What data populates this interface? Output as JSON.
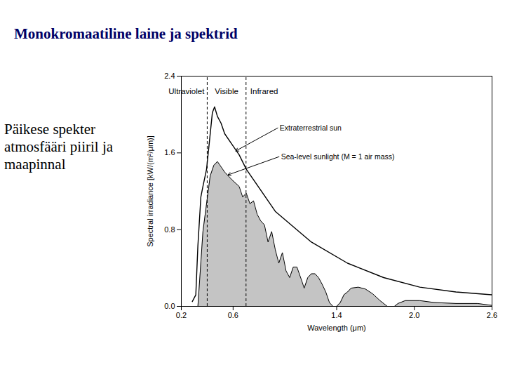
{
  "page_title": "Monokromaatiline laine ja spektrid",
  "side_text": "Päikese spekter atmosfääri piiril ja maapinnal",
  "chart_data": {
    "type": "line",
    "xlabel": "Wavelength (μm)",
    "ylabel": "Spectral irradiance [kW/(m²/μm)]",
    "xlim": [
      0.2,
      2.6
    ],
    "xticks": [
      0.2,
      0.6,
      1.4,
      {
        "value": 2.0,
        "label": "2.0"
      },
      2.6
    ],
    "ylim": [
      0,
      2.4
    ],
    "yticks": [
      {
        "value": 0,
        "label": "0.0"
      },
      0.8,
      1.6,
      2.4
    ],
    "grid": false,
    "regions": [
      {
        "label": "Ultraviolet"
      },
      {
        "label": "Visible"
      },
      {
        "label": "Infrared"
      }
    ],
    "region_bounds": [
      0.4,
      0.7
    ],
    "series": [
      {
        "name": "Sea-level sunlight (M = 1 air mass)",
        "type": "area",
        "color": "#c4c4c4",
        "x": [
          0.328,
          0.367,
          0.423,
          0.451,
          0.479,
          0.535,
          0.591,
          0.647,
          0.674,
          0.702,
          0.73,
          0.758,
          0.786,
          0.814,
          0.842,
          0.87,
          0.898,
          0.926,
          0.953,
          0.981,
          1.009,
          1.037,
          1.065,
          1.093,
          1.132,
          1.149,
          1.177,
          1.205,
          1.233,
          1.26,
          1.288,
          1.316,
          1.344,
          1.372,
          1.4,
          1.428,
          1.456,
          1.484,
          1.512,
          1.567,
          1.623,
          1.679,
          1.735,
          1.791,
          1.846,
          1.874,
          1.93,
          2.042,
          2.153,
          2.321,
          2.488,
          2.6
        ],
        "values": [
          0,
          0.78,
          1.36,
          1.47,
          1.51,
          1.4,
          1.32,
          1.25,
          1.14,
          1.18,
          1.07,
          1.1,
          0.96,
          0.89,
          0.85,
          0.67,
          0.78,
          0.59,
          0.45,
          0.56,
          0.37,
          0.3,
          0.41,
          0.41,
          0.26,
          0.19,
          0.3,
          0.34,
          0.34,
          0.3,
          0.23,
          0.15,
          0.04,
          0,
          0,
          0.04,
          0.12,
          0.15,
          0.19,
          0.2,
          0.18,
          0.13,
          0.06,
          0,
          0,
          0.03,
          0.06,
          0.06,
          0.04,
          0.03,
          0.03,
          0.01
        ]
      },
      {
        "name": "Extraterrestrial sun",
        "type": "line",
        "color": "#000000",
        "x": [
          0.285,
          0.312,
          0.328,
          0.351,
          0.367,
          0.395,
          0.418,
          0.44,
          0.457,
          0.479,
          0.507,
          0.535,
          0.591,
          0.647,
          0.702,
          0.926,
          1.205,
          1.484,
          1.763,
          2.042,
          2.321,
          2.6
        ],
        "values": [
          0.05,
          0.12,
          0.63,
          1.14,
          1.25,
          1.43,
          1.73,
          2.02,
          2.08,
          1.98,
          1.91,
          1.8,
          1.69,
          1.58,
          1.43,
          0.99,
          0.67,
          0.45,
          0.3,
          0.2,
          0.15,
          0.12
        ]
      }
    ]
  }
}
